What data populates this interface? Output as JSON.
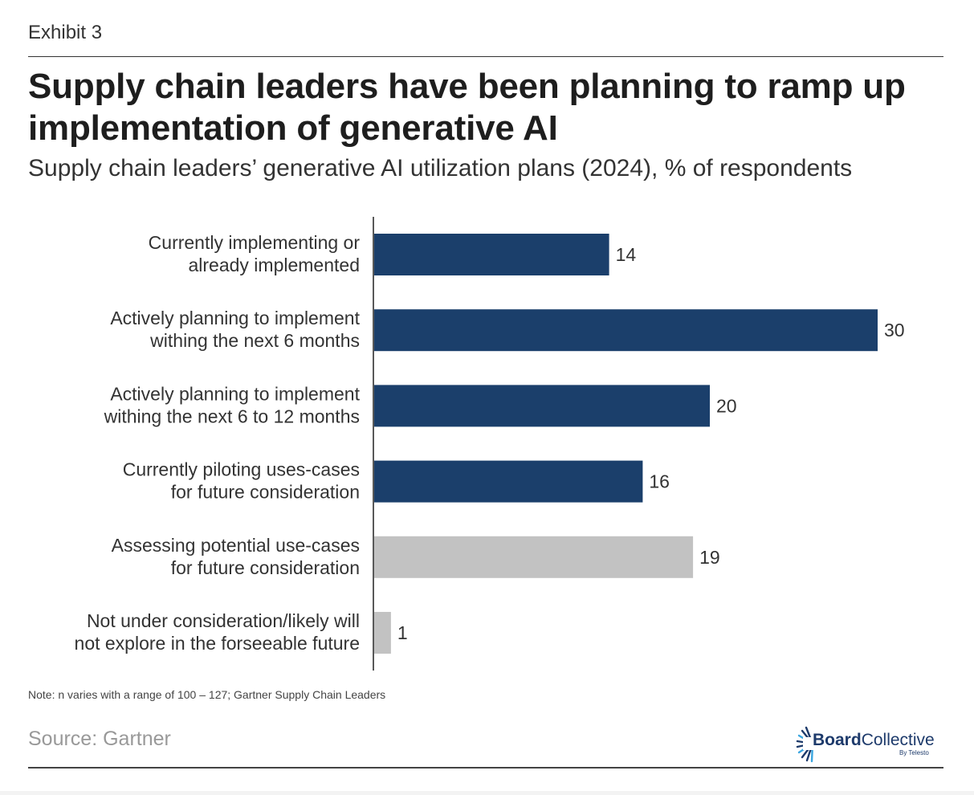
{
  "header": {
    "exhibit": "Exhibit 3",
    "title": "Supply chain leaders have been planning to ramp up implementation of generative AI",
    "subtitle": "Supply chain leaders’ generative AI utilization plans (2024), % of respondents"
  },
  "chart_data": {
    "type": "bar",
    "orientation": "horizontal",
    "title": "Supply chain leaders have been planning to ramp up implementation of generative AI",
    "subtitle": "Supply chain leaders’ generative AI utilization plans (2024), % of respondents",
    "xlabel": "",
    "ylabel": "",
    "xlim": [
      0,
      30
    ],
    "grid": false,
    "categories": [
      [
        "Currently implementing or",
        "already implemented"
      ],
      [
        "Actively planning to implement",
        "withing the next 6 months"
      ],
      [
        "Actively planning to implement",
        "withing the next 6 to 12 months"
      ],
      [
        "Currently piloting uses-cases",
        "for future consideration"
      ],
      [
        "Assessing potential use-cases",
        "for future consideration"
      ],
      [
        "Not under consideration/likely will",
        "not explore in the forseeable future"
      ]
    ],
    "values": [
      14,
      30,
      20,
      16,
      19,
      1
    ],
    "value_labels": [
      "14",
      "30",
      "20",
      "16",
      "19",
      "1"
    ],
    "bar_colors": [
      "#1b3f6b",
      "#1b3f6b",
      "#1b3f6b",
      "#1b3f6b",
      "#c2c2c2",
      "#c2c2c2"
    ]
  },
  "footer": {
    "note": "Note: n varies with a range of 100 – 127; Gartner Supply Chain Leaders",
    "source": "Source: Gartner",
    "logo_bold": "Board",
    "logo_light": "Collective",
    "logo_sub": "By Telesto"
  }
}
